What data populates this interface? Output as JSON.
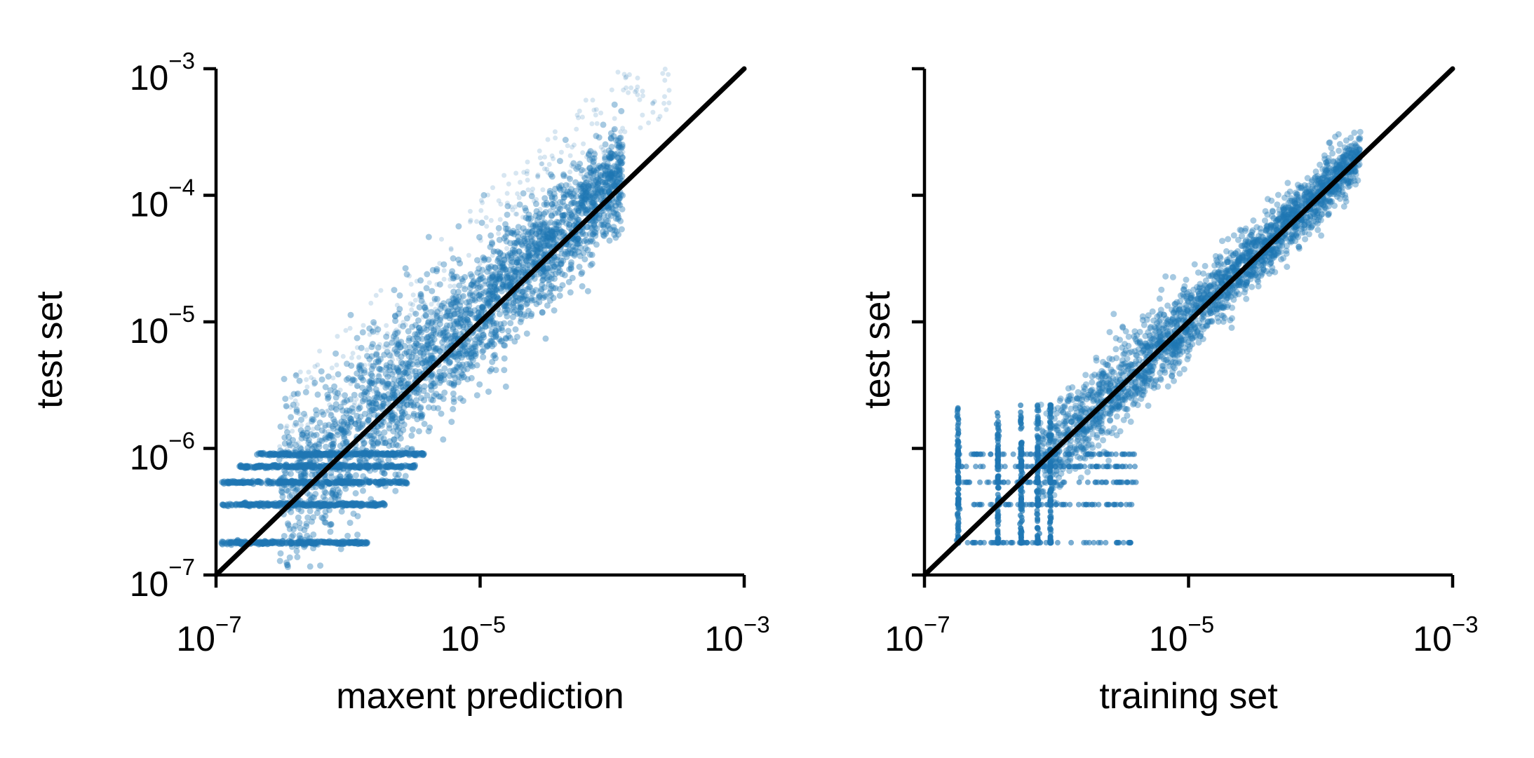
{
  "chart_data": [
    {
      "type": "scatter",
      "xlabel": "maxent prediction",
      "ylabel": "test set",
      "xscale": "log",
      "yscale": "log",
      "xlim": [
        1e-07,
        0.001
      ],
      "ylim": [
        1e-07,
        0.001
      ],
      "x_ticks": [
        {
          "value": 1e-07,
          "base": "10",
          "exp": "−7"
        },
        {
          "value": 1e-05,
          "base": "10",
          "exp": "−5"
        },
        {
          "value": 0.001,
          "base": "10",
          "exp": "−3"
        }
      ],
      "y_ticks": [
        {
          "value": 1e-07,
          "base": "10",
          "exp": "−7"
        },
        {
          "value": 1e-06,
          "base": "10",
          "exp": "−6"
        },
        {
          "value": 1e-05,
          "base": "10",
          "exp": "−5"
        },
        {
          "value": 0.0001,
          "base": "10",
          "exp": "−4"
        },
        {
          "value": 0.001,
          "base": "10",
          "exp": "−3"
        }
      ],
      "y_tick_labels_visible": true,
      "reference_line": {
        "from": [
          1e-07,
          1e-07
        ],
        "to": [
          0.001,
          0.001
        ],
        "color": "#000000"
      },
      "point_color": "#1f77b4",
      "point_alpha": 0.18,
      "point_clouds": [
        {
          "kind": "diagonal-band",
          "x_range": [
            3e-07,
            0.00012
          ],
          "y_over_x_log10_spread": 0.35,
          "count": 2600
        },
        {
          "kind": "upper-scatter",
          "x_range": [
            3e-07,
            0.0003
          ],
          "y_over_x_log10_range": [
            0.25,
            1.0
          ],
          "count": 420
        },
        {
          "kind": "quantized-row",
          "y": 1.8e-07,
          "x_range": [
            1.1e-07,
            1.4e-06
          ],
          "count": 240
        },
        {
          "kind": "quantized-row",
          "y": 3.6e-07,
          "x_range": [
            1.1e-07,
            1.9e-06
          ],
          "count": 260
        },
        {
          "kind": "quantized-row",
          "y": 5.4e-07,
          "x_range": [
            1.1e-07,
            2.8e-06
          ],
          "count": 260
        },
        {
          "kind": "quantized-row",
          "y": 7.2e-07,
          "x_range": [
            1.5e-07,
            3.3e-06
          ],
          "count": 260
        },
        {
          "kind": "quantized-row",
          "y": 9e-07,
          "x_range": [
            2e-07,
            3.8e-06
          ],
          "count": 260
        }
      ]
    },
    {
      "type": "scatter",
      "xlabel": "training set",
      "ylabel": "test set",
      "xscale": "log",
      "yscale": "log",
      "xlim": [
        1e-07,
        0.001
      ],
      "ylim": [
        1e-07,
        0.001
      ],
      "x_ticks": [
        {
          "value": 1e-07,
          "base": "10",
          "exp": "−7"
        },
        {
          "value": 1e-05,
          "base": "10",
          "exp": "−5"
        },
        {
          "value": 0.001,
          "base": "10",
          "exp": "−3"
        }
      ],
      "y_ticks": [
        {
          "value": 1e-07
        },
        {
          "value": 1e-06
        },
        {
          "value": 1e-05
        },
        {
          "value": 0.0001
        },
        {
          "value": 0.001
        }
      ],
      "y_tick_labels_visible": false,
      "reference_line": {
        "from": [
          1e-07,
          1e-07
        ],
        "to": [
          0.001,
          0.001
        ],
        "color": "#000000"
      },
      "point_color": "#1f77b4",
      "point_alpha": 0.18,
      "point_clouds": [
        {
          "kind": "diagonal-band",
          "x_range": [
            7e-07,
            0.0002
          ],
          "y_over_x_log10_spread": 0.18,
          "count": 2400
        },
        {
          "kind": "grid",
          "x_values": [
            1.8e-07,
            3.6e-07,
            5.4e-07,
            7.2e-07,
            9e-07
          ],
          "y_values": [
            1.8e-07,
            3.6e-07,
            5.4e-07,
            7.2e-07,
            9e-07
          ],
          "x_max": 4e-06
        }
      ]
    }
  ]
}
